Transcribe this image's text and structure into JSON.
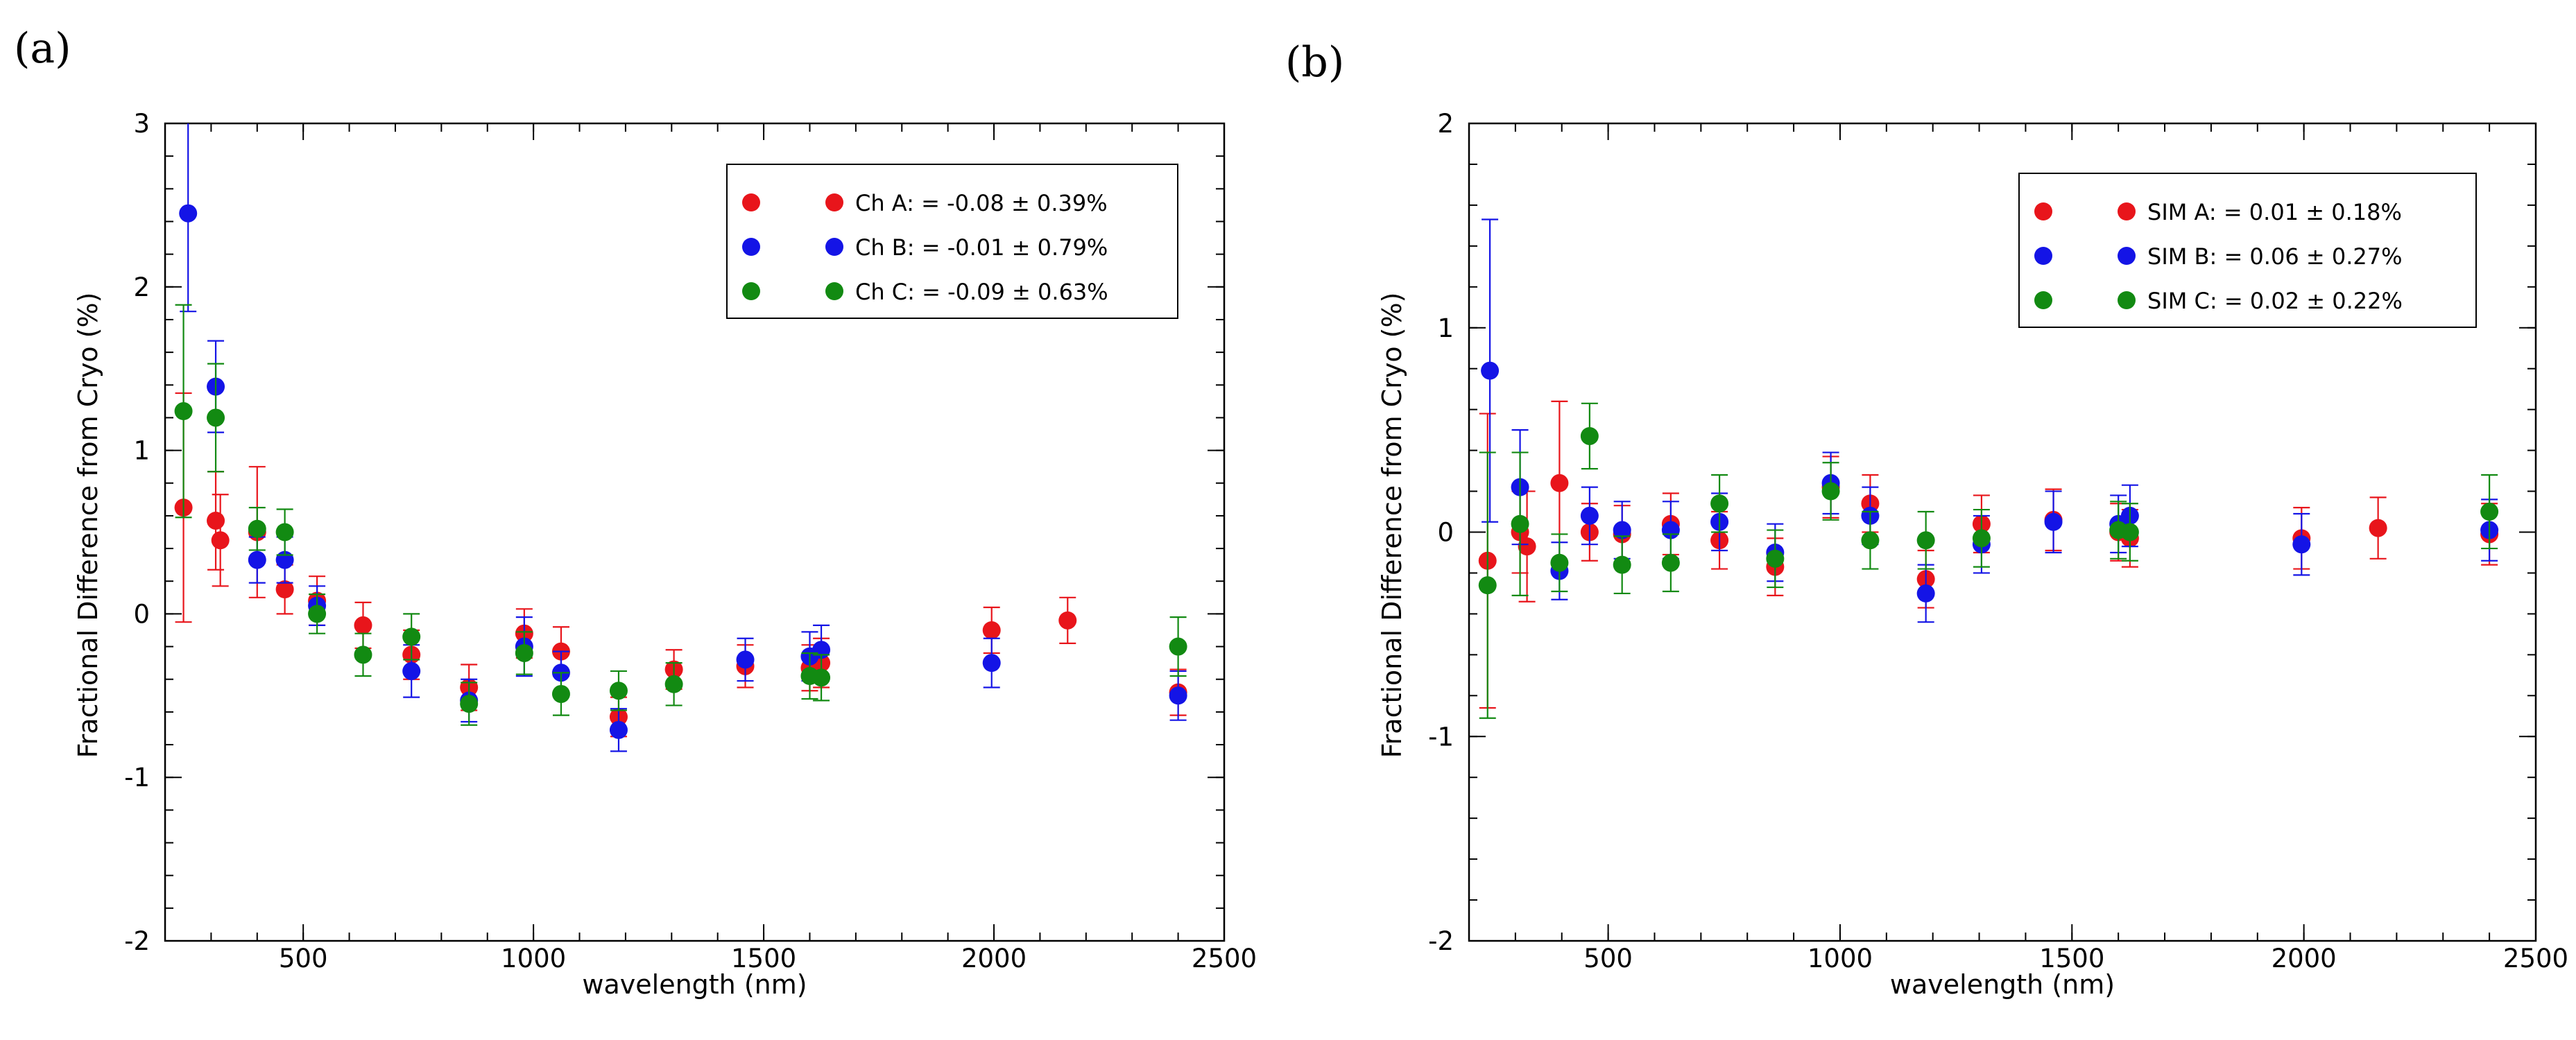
{
  "chart_data": [
    {
      "type": "scatter",
      "panel_label": "(a)",
      "title": "",
      "xlabel": "wavelength (nm)",
      "ylabel": "Fractional Difference from Cryo (%)",
      "xlim": [
        200,
        2500
      ],
      "ylim": [
        -2,
        3
      ],
      "x_major_ticks": [
        500,
        1000,
        1500,
        2000,
        2500
      ],
      "x_tick_labels": [
        "500",
        "1000",
        "1500",
        "2000",
        "2500"
      ],
      "y_major_ticks": [
        -2,
        -1,
        0,
        1,
        2,
        3
      ],
      "y_tick_labels": [
        "-2",
        "-1",
        "0",
        "1",
        "2",
        "3"
      ],
      "x_minor_step": 100,
      "y_minor_step": 0.2,
      "legend_position": "top-right",
      "series": [
        {
          "name": "Ch A",
          "legend_label": "Ch A: = -0.08 ± 0.39%",
          "color": "#e8151b",
          "points": [
            {
              "x": 240,
              "y": 0.65,
              "err": 0.7
            },
            {
              "x": 310,
              "y": 0.57,
              "err": 0.3
            },
            {
              "x": 320,
              "y": 0.45,
              "err": 0.28
            },
            {
              "x": 400,
              "y": 0.5,
              "err": 0.4
            },
            {
              "x": 460,
              "y": 0.15,
              "err": 0.15
            },
            {
              "x": 530,
              "y": 0.08,
              "err": 0.15
            },
            {
              "x": 630,
              "y": -0.07,
              "err": 0.14
            },
            {
              "x": 735,
              "y": -0.25,
              "err": 0.15
            },
            {
              "x": 860,
              "y": -0.45,
              "err": 0.14
            },
            {
              "x": 980,
              "y": -0.12,
              "err": 0.15
            },
            {
              "x": 1060,
              "y": -0.23,
              "err": 0.15
            },
            {
              "x": 1185,
              "y": -0.63,
              "err": 0.12
            },
            {
              "x": 1305,
              "y": -0.34,
              "err": 0.12
            },
            {
              "x": 1460,
              "y": -0.32,
              "err": 0.13
            },
            {
              "x": 1600,
              "y": -0.33,
              "err": 0.14
            },
            {
              "x": 1625,
              "y": -0.3,
              "err": 0.15
            },
            {
              "x": 1995,
              "y": -0.1,
              "err": 0.14
            },
            {
              "x": 2160,
              "y": -0.04,
              "err": 0.14
            },
            {
              "x": 2400,
              "y": -0.48,
              "err": 0.14
            }
          ]
        },
        {
          "name": "Ch B",
          "legend_label": "Ch B: = -0.01 ± 0.79%",
          "color": "#1414e6",
          "points": [
            {
              "x": 250,
              "y": 2.45,
              "err": 0.6
            },
            {
              "x": 310,
              "y": 1.39,
              "err": 0.28
            },
            {
              "x": 400,
              "y": 0.33,
              "err": 0.14
            },
            {
              "x": 460,
              "y": 0.33,
              "err": 0.14
            },
            {
              "x": 530,
              "y": 0.05,
              "err": 0.12
            },
            {
              "x": 735,
              "y": -0.35,
              "err": 0.16
            },
            {
              "x": 860,
              "y": -0.53,
              "err": 0.13
            },
            {
              "x": 980,
              "y": -0.2,
              "err": 0.18
            },
            {
              "x": 1060,
              "y": -0.36,
              "err": 0.13
            },
            {
              "x": 1185,
              "y": -0.71,
              "err": 0.13
            },
            {
              "x": 1460,
              "y": -0.28,
              "err": 0.13
            },
            {
              "x": 1600,
              "y": -0.26,
              "err": 0.15
            },
            {
              "x": 1625,
              "y": -0.22,
              "err": 0.15
            },
            {
              "x": 1995,
              "y": -0.3,
              "err": 0.15
            },
            {
              "x": 2400,
              "y": -0.5,
              "err": 0.15
            }
          ]
        },
        {
          "name": "Ch C",
          "legend_label": "Ch C: = -0.09 ± 0.63%",
          "color": "#128a12",
          "points": [
            {
              "x": 240,
              "y": 1.24,
              "err": 0.65
            },
            {
              "x": 310,
              "y": 1.2,
              "err": 0.33
            },
            {
              "x": 400,
              "y": 0.52,
              "err": 0.13
            },
            {
              "x": 460,
              "y": 0.5,
              "err": 0.14
            },
            {
              "x": 530,
              "y": 0.0,
              "err": 0.12
            },
            {
              "x": 630,
              "y": -0.25,
              "err": 0.13
            },
            {
              "x": 735,
              "y": -0.14,
              "err": 0.14
            },
            {
              "x": 860,
              "y": -0.55,
              "err": 0.13
            },
            {
              "x": 980,
              "y": -0.24,
              "err": 0.13
            },
            {
              "x": 1060,
              "y": -0.49,
              "err": 0.13
            },
            {
              "x": 1185,
              "y": -0.47,
              "err": 0.12
            },
            {
              "x": 1305,
              "y": -0.43,
              "err": 0.13
            },
            {
              "x": 1600,
              "y": -0.38,
              "err": 0.14
            },
            {
              "x": 1625,
              "y": -0.39,
              "err": 0.14
            },
            {
              "x": 2400,
              "y": -0.2,
              "err": 0.18
            }
          ]
        }
      ]
    },
    {
      "type": "scatter",
      "panel_label": "(b)",
      "title": "",
      "xlabel": "wavelength (nm)",
      "ylabel": "Fractional Difference from Cryo (%)",
      "xlim": [
        200,
        2500
      ],
      "ylim": [
        -2,
        2
      ],
      "x_major_ticks": [
        500,
        1000,
        1500,
        2000,
        2500
      ],
      "x_tick_labels": [
        "500",
        "1000",
        "1500",
        "2000",
        "2500"
      ],
      "y_major_ticks": [
        -2,
        -1,
        0,
        1,
        2
      ],
      "y_tick_labels": [
        "-2",
        "-1",
        "0",
        "1",
        "2"
      ],
      "x_minor_step": 100,
      "y_minor_step": 0.2,
      "legend_position": "top-right",
      "series": [
        {
          "name": "SIM A",
          "legend_label": "SIM A: = 0.01 ± 0.18%",
          "color": "#e8151b",
          "points": [
            {
              "x": 240,
              "y": -0.14,
              "err": 0.72
            },
            {
              "x": 310,
              "y": 0.0,
              "err": 0.2
            },
            {
              "x": 325,
              "y": -0.07,
              "err": 0.27
            },
            {
              "x": 395,
              "y": 0.24,
              "err": 0.4
            },
            {
              "x": 460,
              "y": 0.0,
              "err": 0.14
            },
            {
              "x": 530,
              "y": -0.01,
              "err": 0.14
            },
            {
              "x": 635,
              "y": 0.04,
              "err": 0.15
            },
            {
              "x": 740,
              "y": -0.04,
              "err": 0.14
            },
            {
              "x": 860,
              "y": -0.17,
              "err": 0.14
            },
            {
              "x": 980,
              "y": 0.22,
              "err": 0.15
            },
            {
              "x": 1065,
              "y": 0.14,
              "err": 0.14
            },
            {
              "x": 1185,
              "y": -0.23,
              "err": 0.14
            },
            {
              "x": 1305,
              "y": 0.04,
              "err": 0.14
            },
            {
              "x": 1460,
              "y": 0.06,
              "err": 0.15
            },
            {
              "x": 1600,
              "y": 0.0,
              "err": 0.14
            },
            {
              "x": 1625,
              "y": -0.03,
              "err": 0.14
            },
            {
              "x": 1995,
              "y": -0.03,
              "err": 0.15
            },
            {
              "x": 2160,
              "y": 0.02,
              "err": 0.15
            },
            {
              "x": 2400,
              "y": -0.01,
              "err": 0.15
            }
          ]
        },
        {
          "name": "SIM B",
          "legend_label": "SIM B: = 0.06 ± 0.27%",
          "color": "#1414e6",
          "points": [
            {
              "x": 245,
              "y": 0.79,
              "err": 0.74
            },
            {
              "x": 310,
              "y": 0.22,
              "err": 0.28
            },
            {
              "x": 395,
              "y": -0.19,
              "err": 0.14
            },
            {
              "x": 460,
              "y": 0.08,
              "err": 0.14
            },
            {
              "x": 530,
              "y": 0.01,
              "err": 0.14
            },
            {
              "x": 635,
              "y": 0.01,
              "err": 0.14
            },
            {
              "x": 740,
              "y": 0.05,
              "err": 0.14
            },
            {
              "x": 860,
              "y": -0.1,
              "err": 0.14
            },
            {
              "x": 980,
              "y": 0.24,
              "err": 0.15
            },
            {
              "x": 1065,
              "y": 0.08,
              "err": 0.14
            },
            {
              "x": 1185,
              "y": -0.3,
              "err": 0.14
            },
            {
              "x": 1305,
              "y": -0.06,
              "err": 0.14
            },
            {
              "x": 1460,
              "y": 0.05,
              "err": 0.15
            },
            {
              "x": 1600,
              "y": 0.04,
              "err": 0.14
            },
            {
              "x": 1625,
              "y": 0.08,
              "err": 0.15
            },
            {
              "x": 1995,
              "y": -0.06,
              "err": 0.15
            },
            {
              "x": 2400,
              "y": 0.01,
              "err": 0.15
            }
          ]
        },
        {
          "name": "SIM C",
          "legend_label": "SIM C: = 0.02 ± 0.22%",
          "color": "#128a12",
          "points": [
            {
              "x": 240,
              "y": -0.26,
              "err": 0.65
            },
            {
              "x": 310,
              "y": 0.04,
              "err": 0.35
            },
            {
              "x": 395,
              "y": -0.15,
              "err": 0.14
            },
            {
              "x": 460,
              "y": 0.47,
              "err": 0.16
            },
            {
              "x": 530,
              "y": -0.16,
              "err": 0.14
            },
            {
              "x": 635,
              "y": -0.15,
              "err": 0.14
            },
            {
              "x": 740,
              "y": 0.14,
              "err": 0.14
            },
            {
              "x": 860,
              "y": -0.13,
              "err": 0.14
            },
            {
              "x": 980,
              "y": 0.2,
              "err": 0.14
            },
            {
              "x": 1065,
              "y": -0.04,
              "err": 0.14
            },
            {
              "x": 1185,
              "y": -0.04,
              "err": 0.14
            },
            {
              "x": 1305,
              "y": -0.03,
              "err": 0.14
            },
            {
              "x": 1600,
              "y": 0.01,
              "err": 0.14
            },
            {
              "x": 1625,
              "y": 0.0,
              "err": 0.14
            },
            {
              "x": 2400,
              "y": 0.1,
              "err": 0.18
            }
          ]
        }
      ]
    }
  ]
}
